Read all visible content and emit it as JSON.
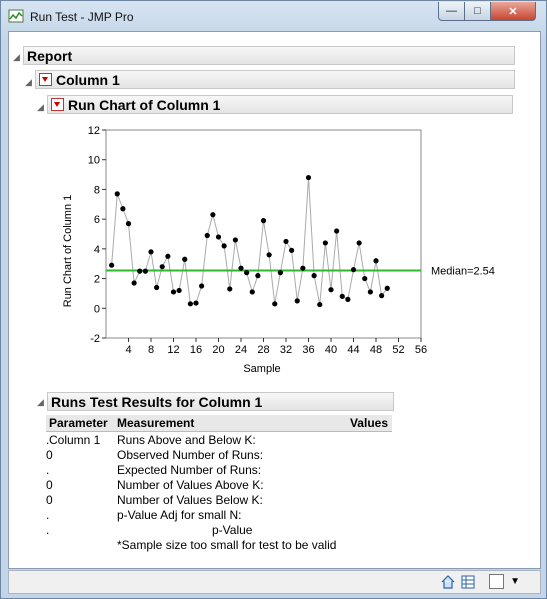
{
  "window": {
    "title": "Run Test - JMP Pro",
    "controls": [
      "minimize",
      "maximize",
      "close"
    ]
  },
  "report": {
    "title": "Report",
    "column_section": "Column 1",
    "run_chart_section": "Run Chart of Column 1"
  },
  "chart_data": {
    "type": "line",
    "title": "",
    "xlabel": "Sample",
    "ylabel": "Run Chart of Column 1",
    "xlim": [
      0,
      56
    ],
    "ylim": [
      -2,
      12
    ],
    "xticks": [
      4,
      8,
      12,
      16,
      20,
      24,
      28,
      32,
      36,
      40,
      44,
      48,
      52,
      56
    ],
    "yticks": [
      -2,
      0,
      2,
      4,
      6,
      8,
      10,
      12
    ],
    "grid": false,
    "median": 2.54,
    "median_label": "Median=2.54",
    "median_color": "#2db82d",
    "line_color": "#aaaaaa",
    "marker_color": "#000000",
    "series": [
      {
        "x": [
          1,
          2,
          3,
          4,
          5,
          6,
          7,
          8,
          9,
          10,
          11,
          12,
          13,
          14,
          15,
          16,
          17,
          18,
          19,
          20,
          21,
          22,
          23,
          24,
          25,
          26,
          27,
          28,
          29,
          30,
          31,
          32,
          33,
          34,
          35,
          36,
          37,
          38,
          39,
          40,
          41,
          42,
          43,
          44,
          45,
          46,
          47,
          48,
          49,
          50
        ],
        "values": [
          2.9,
          7.7,
          6.7,
          5.7,
          1.7,
          2.5,
          2.5,
          3.8,
          1.4,
          2.8,
          3.5,
          1.1,
          1.2,
          3.3,
          0.3,
          0.35,
          1.5,
          4.9,
          6.3,
          4.8,
          4.2,
          1.3,
          4.6,
          2.7,
          2.4,
          1.1,
          2.2,
          5.9,
          3.6,
          0.3,
          2.4,
          4.5,
          3.9,
          0.5,
          2.7,
          8.8,
          2.2,
          0.25,
          4.4,
          1.25,
          5.2,
          0.8,
          0.6,
          2.6,
          4.4,
          2.0,
          1.1,
          3.2,
          0.85,
          1.35
        ]
      }
    ]
  },
  "runs_test": {
    "title": "Runs Test Results for Column 1",
    "headers": [
      "Parameter",
      "Measurement",
      "Values"
    ],
    "parameter": "Column 1",
    "rows": [
      {
        "measurement": "Runs Above and Below K:",
        "value": "."
      },
      {
        "measurement": "Observed Number of Runs:",
        "value": "0"
      },
      {
        "measurement": "Expected Number of Runs:",
        "value": "."
      },
      {
        "measurement": "Number of Values Above K:",
        "value": "0"
      },
      {
        "measurement": "Number of Values Below K:",
        "value": "0"
      },
      {
        "measurement": "p-Value Adj for small N:",
        "value": "."
      },
      {
        "measurement": "p-Value",
        "value": "."
      }
    ],
    "note": "*Sample size too small for test to be valid"
  },
  "statusbar": {
    "icons": [
      "home-icon",
      "table-icon",
      "checkbox-icon",
      "dropdown-arrow-icon"
    ]
  }
}
